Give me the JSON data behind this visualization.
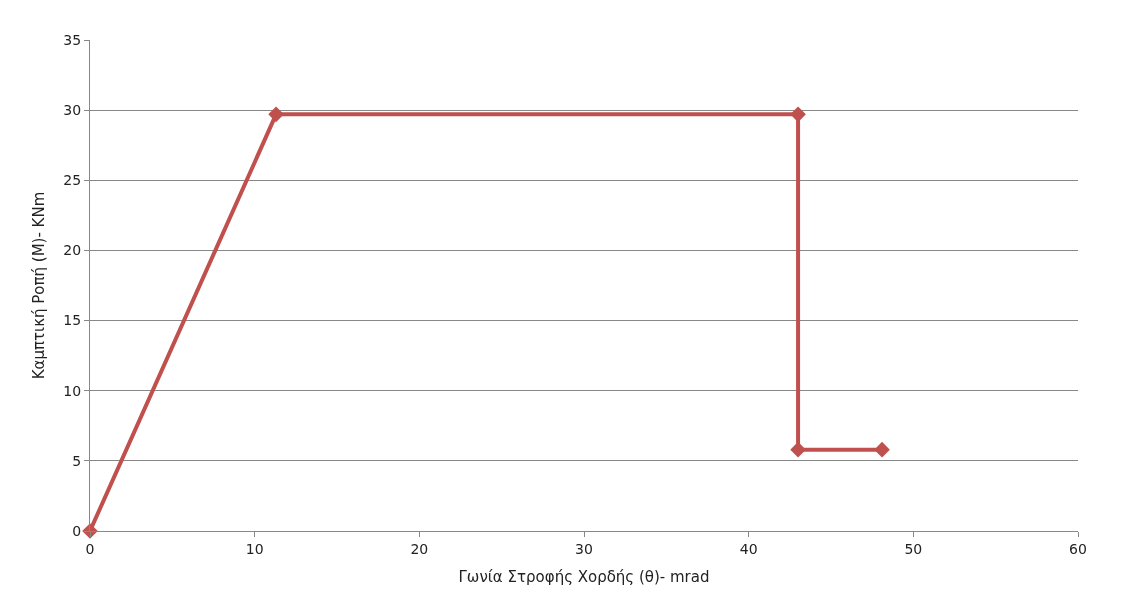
{
  "chart_data": {
    "type": "line",
    "xlabel": "Γωνία Στροφής Χορδής (θ)- mrad",
    "ylabel": "Καμπτική Ροπή (Μ)- KNm",
    "x": [
      0,
      11.3,
      43.0,
      43.0,
      48.1
    ],
    "series": [
      {
        "color": "#c0504d",
        "values": [
          0,
          29.7,
          29.7,
          5.8,
          5.8
        ]
      }
    ],
    "xlim": [
      0,
      60
    ],
    "xticks": [
      0,
      10,
      20,
      30,
      40,
      50,
      60
    ],
    "ylim": [
      0,
      35
    ],
    "yticks": [
      0,
      5,
      10,
      15,
      20,
      25,
      30,
      35
    ],
    "grid": "y",
    "marker": "diamond",
    "line_style": "solid",
    "legend": false
  }
}
